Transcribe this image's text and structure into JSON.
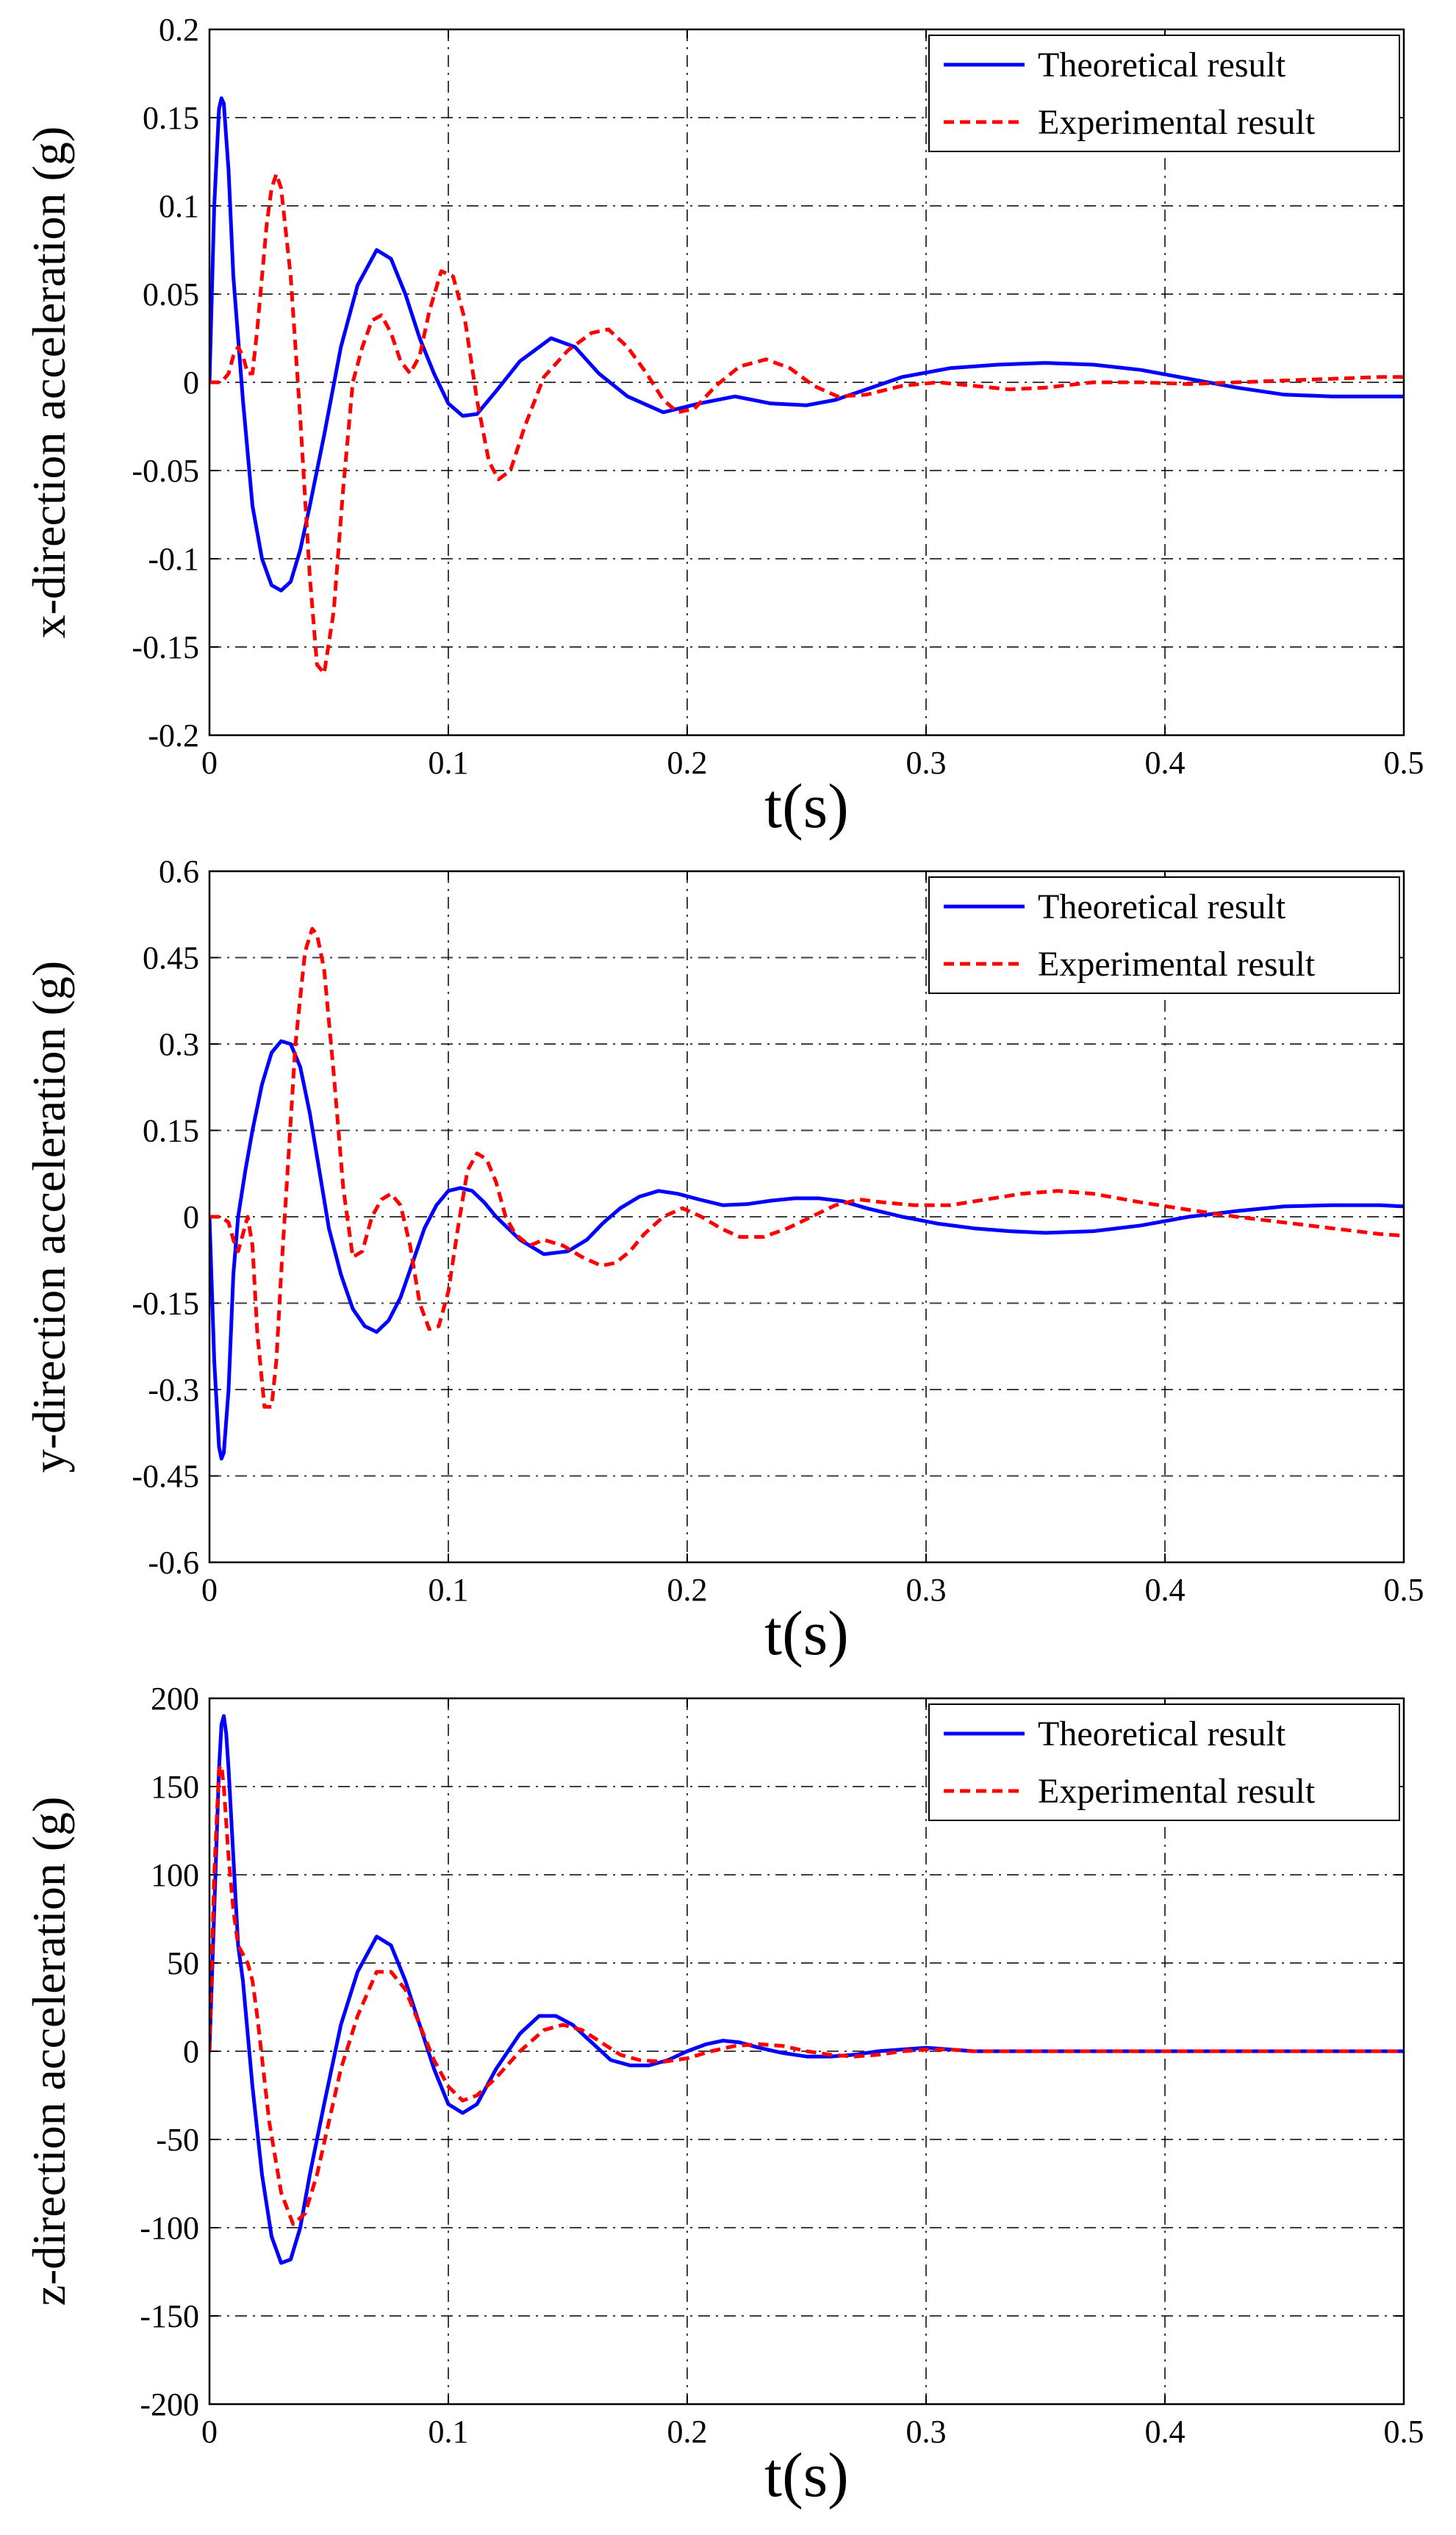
{
  "chart_data": [
    {
      "type": "line",
      "xlabel": "t(s)",
      "ylabel": "x-direction acceleration (g)",
      "xlim": [
        0,
        0.5
      ],
      "ylim": [
        -0.2,
        0.2
      ],
      "xticks": [
        0,
        0.1,
        0.2,
        0.3,
        0.4,
        0.5
      ],
      "xtick_labels": [
        "0",
        "0.1",
        "0.2",
        "0.3",
        "0.4",
        "0.5"
      ],
      "yticks": [
        -0.2,
        -0.15,
        -0.1,
        -0.05,
        0,
        0.05,
        0.1,
        0.15,
        0.2
      ],
      "ytick_labels": [
        "-0.2",
        "-0.15",
        "-0.1",
        "-0.05",
        "0",
        "0.05",
        "0.1",
        "0.15",
        "0.2"
      ],
      "grid": true,
      "legend_position": "top-right",
      "series": [
        {
          "name": "Theoretical result",
          "color": "#0000ff",
          "dash": "solid",
          "x": [
            0,
            0.002,
            0.004,
            0.005,
            0.006,
            0.008,
            0.01,
            0.014,
            0.018,
            0.022,
            0.026,
            0.03,
            0.034,
            0.038,
            0.042,
            0.048,
            0.055,
            0.062,
            0.07,
            0.076,
            0.082,
            0.088,
            0.094,
            0.1,
            0.106,
            0.112,
            0.12,
            0.13,
            0.143,
            0.153,
            0.163,
            0.175,
            0.19,
            0.205,
            0.22,
            0.235,
            0.25,
            0.262,
            0.275,
            0.29,
            0.31,
            0.33,
            0.35,
            0.37,
            0.39,
            0.41,
            0.43,
            0.45,
            0.47,
            0.49,
            0.5
          ],
          "y": [
            0,
            0.1,
            0.155,
            0.161,
            0.158,
            0.12,
            0.06,
            -0.01,
            -0.07,
            -0.1,
            -0.115,
            -0.118,
            -0.113,
            -0.095,
            -0.07,
            -0.03,
            0.02,
            0.055,
            0.075,
            0.07,
            0.05,
            0.025,
            0.005,
            -0.012,
            -0.019,
            -0.018,
            -0.005,
            0.012,
            0.025,
            0.02,
            0.005,
            -0.008,
            -0.017,
            -0.012,
            -0.008,
            -0.012,
            -0.013,
            -0.01,
            -0.004,
            0.003,
            0.008,
            0.01,
            0.011,
            0.01,
            0.007,
            0.002,
            -0.003,
            -0.007,
            -0.008,
            -0.008,
            -0.008
          ]
        },
        {
          "name": "Experimental result",
          "color": "#ff0000",
          "dash": "dashed",
          "x": [
            0,
            0.005,
            0.008,
            0.01,
            0.012,
            0.014,
            0.016,
            0.018,
            0.02,
            0.024,
            0.026,
            0.028,
            0.03,
            0.034,
            0.038,
            0.042,
            0.045,
            0.048,
            0.052,
            0.056,
            0.06,
            0.064,
            0.068,
            0.072,
            0.076,
            0.08,
            0.084,
            0.088,
            0.092,
            0.097,
            0.102,
            0.107,
            0.112,
            0.117,
            0.121,
            0.126,
            0.132,
            0.14,
            0.15,
            0.16,
            0.167,
            0.175,
            0.183,
            0.19,
            0.196,
            0.203,
            0.212,
            0.222,
            0.233,
            0.243,
            0.253,
            0.263,
            0.275,
            0.29,
            0.305,
            0.32,
            0.335,
            0.35,
            0.37,
            0.39,
            0.41,
            0.43,
            0.45,
            0.47,
            0.49,
            0.5
          ],
          "y": [
            0,
            0,
            0.005,
            0.015,
            0.02,
            0.015,
            0.005,
            0.005,
            0.03,
            0.09,
            0.11,
            0.118,
            0.11,
            0.06,
            -0.02,
            -0.11,
            -0.16,
            -0.165,
            -0.13,
            -0.06,
            0.0,
            0.02,
            0.035,
            0.038,
            0.028,
            0.012,
            0.005,
            0.015,
            0.04,
            0.063,
            0.06,
            0.035,
            -0.01,
            -0.045,
            -0.055,
            -0.05,
            -0.025,
            0.003,
            0.018,
            0.028,
            0.03,
            0.02,
            0.005,
            -0.01,
            -0.017,
            -0.015,
            -0.002,
            0.009,
            0.013,
            0.008,
            -0.002,
            -0.008,
            -0.007,
            -0.002,
            0.0,
            -0.002,
            -0.004,
            -0.003,
            0.0,
            0.0,
            -0.001,
            0.0,
            0.001,
            0.002,
            0.003,
            0.003
          ]
        }
      ]
    },
    {
      "type": "line",
      "xlabel": "t(s)",
      "ylabel": "y-direction acceleration (g)",
      "xlim": [
        0,
        0.5
      ],
      "ylim": [
        -0.6,
        0.6
      ],
      "xticks": [
        0,
        0.1,
        0.2,
        0.3,
        0.4,
        0.5
      ],
      "xtick_labels": [
        "0",
        "0.1",
        "0.2",
        "0.3",
        "0.4",
        "0.5"
      ],
      "yticks": [
        -0.6,
        -0.45,
        -0.3,
        -0.15,
        0,
        0.15,
        0.3,
        0.45,
        0.6
      ],
      "ytick_labels": [
        "-0.6",
        "-0.45",
        "-0.3",
        "-0.15",
        "0",
        "0.15",
        "0.3",
        "0.45",
        "0.6"
      ],
      "grid": true,
      "legend_position": "top-right",
      "series": [
        {
          "name": "Theoretical result",
          "color": "#0000ff",
          "dash": "solid",
          "x": [
            0,
            0.002,
            0.004,
            0.005,
            0.006,
            0.008,
            0.01,
            0.012,
            0.015,
            0.018,
            0.022,
            0.026,
            0.03,
            0.034,
            0.038,
            0.042,
            0.046,
            0.05,
            0.055,
            0.06,
            0.065,
            0.07,
            0.075,
            0.08,
            0.085,
            0.09,
            0.095,
            0.1,
            0.105,
            0.11,
            0.115,
            0.12,
            0.13,
            0.14,
            0.15,
            0.158,
            0.165,
            0.172,
            0.18,
            0.188,
            0.196,
            0.205,
            0.215,
            0.225,
            0.235,
            0.245,
            0.255,
            0.265,
            0.275,
            0.29,
            0.305,
            0.32,
            0.335,
            0.35,
            0.37,
            0.39,
            0.41,
            0.43,
            0.45,
            0.47,
            0.49,
            0.5
          ],
          "y": [
            0,
            -0.25,
            -0.4,
            -0.42,
            -0.41,
            -0.3,
            -0.1,
            0.0,
            0.08,
            0.15,
            0.23,
            0.285,
            0.305,
            0.3,
            0.26,
            0.18,
            0.08,
            -0.02,
            -0.1,
            -0.16,
            -0.19,
            -0.2,
            -0.18,
            -0.14,
            -0.08,
            -0.02,
            0.02,
            0.045,
            0.05,
            0.045,
            0.025,
            0.0,
            -0.04,
            -0.065,
            -0.06,
            -0.04,
            -0.01,
            0.015,
            0.035,
            0.045,
            0.04,
            0.03,
            0.02,
            0.022,
            0.028,
            0.032,
            0.032,
            0.027,
            0.015,
            0.0,
            -0.012,
            -0.02,
            -0.025,
            -0.028,
            -0.025,
            -0.015,
            0.0,
            0.01,
            0.018,
            0.02,
            0.02,
            0.018
          ]
        },
        {
          "name": "Experimental result",
          "color": "#ff0000",
          "dash": "dashed",
          "x": [
            0,
            0.005,
            0.008,
            0.01,
            0.012,
            0.014,
            0.016,
            0.018,
            0.02,
            0.023,
            0.026,
            0.028,
            0.03,
            0.033,
            0.036,
            0.04,
            0.043,
            0.045,
            0.048,
            0.052,
            0.056,
            0.06,
            0.064,
            0.068,
            0.072,
            0.076,
            0.08,
            0.084,
            0.088,
            0.092,
            0.096,
            0.1,
            0.104,
            0.108,
            0.112,
            0.116,
            0.12,
            0.124,
            0.128,
            0.134,
            0.14,
            0.148,
            0.156,
            0.164,
            0.17,
            0.176,
            0.182,
            0.19,
            0.198,
            0.206,
            0.214,
            0.222,
            0.232,
            0.242,
            0.252,
            0.262,
            0.272,
            0.282,
            0.295,
            0.31,
            0.325,
            0.34,
            0.355,
            0.37,
            0.39,
            0.41,
            0.43,
            0.45,
            0.47,
            0.49,
            0.5
          ],
          "y": [
            0,
            0,
            -0.01,
            -0.04,
            -0.06,
            -0.03,
            0.0,
            -0.05,
            -0.2,
            -0.33,
            -0.33,
            -0.25,
            -0.1,
            0.1,
            0.3,
            0.46,
            0.5,
            0.49,
            0.43,
            0.25,
            0.05,
            -0.07,
            -0.06,
            0.0,
            0.03,
            0.04,
            0.02,
            -0.05,
            -0.15,
            -0.195,
            -0.19,
            -0.13,
            -0.02,
            0.08,
            0.11,
            0.1,
            0.06,
            0.0,
            -0.03,
            -0.05,
            -0.04,
            -0.05,
            -0.07,
            -0.085,
            -0.08,
            -0.06,
            -0.03,
            0.0,
            0.015,
            0.0,
            -0.02,
            -0.035,
            -0.035,
            -0.02,
            0.0,
            0.02,
            0.03,
            0.025,
            0.02,
            0.02,
            0.03,
            0.04,
            0.045,
            0.04,
            0.025,
            0.012,
            0.0,
            -0.01,
            -0.02,
            -0.03,
            -0.033
          ]
        }
      ]
    },
    {
      "type": "line",
      "xlabel": "t(s)",
      "ylabel": "z-direction acceleration (g)",
      "xlim": [
        0,
        0.5
      ],
      "ylim": [
        -200,
        200
      ],
      "xticks": [
        0,
        0.1,
        0.2,
        0.3,
        0.4,
        0.5
      ],
      "xtick_labels": [
        "0",
        "0.1",
        "0.2",
        "0.3",
        "0.4",
        "0.5"
      ],
      "yticks": [
        -200,
        -150,
        -100,
        -50,
        0,
        50,
        100,
        150,
        200
      ],
      "ytick_labels": [
        "-200",
        "-150",
        "-100",
        "-50",
        "0",
        "50",
        "100",
        "150",
        "200"
      ],
      "grid": true,
      "legend_position": "top-right",
      "series": [
        {
          "name": "Theoretical result",
          "color": "#0000ff",
          "dash": "solid",
          "x": [
            0,
            0.002,
            0.004,
            0.005,
            0.006,
            0.007,
            0.008,
            0.01,
            0.012,
            0.014,
            0.018,
            0.022,
            0.026,
            0.03,
            0.034,
            0.038,
            0.042,
            0.048,
            0.055,
            0.062,
            0.07,
            0.076,
            0.082,
            0.088,
            0.094,
            0.1,
            0.106,
            0.112,
            0.12,
            0.13,
            0.138,
            0.145,
            0.152,
            0.16,
            0.168,
            0.176,
            0.184,
            0.192,
            0.2,
            0.208,
            0.215,
            0.222,
            0.23,
            0.24,
            0.25,
            0.26,
            0.27,
            0.28,
            0.29,
            0.3,
            0.31,
            0.32,
            0.34,
            0.36,
            0.38,
            0.4,
            0.42,
            0.44,
            0.46,
            0.48,
            0.5
          ],
          "y": [
            0,
            80,
            160,
            185,
            190,
            180,
            160,
            110,
            60,
            40,
            -20,
            -70,
            -105,
            -120,
            -118,
            -100,
            -70,
            -30,
            15,
            45,
            65,
            60,
            40,
            15,
            -10,
            -30,
            -35,
            -30,
            -10,
            10,
            20,
            20,
            15,
            5,
            -5,
            -8,
            -8,
            -5,
            0,
            4,
            6,
            5,
            2,
            -1,
            -3,
            -3,
            -2,
            0,
            1,
            2,
            1,
            0,
            0,
            0,
            0,
            0,
            0,
            0,
            0,
            0,
            0
          ]
        },
        {
          "name": "Experimental result",
          "color": "#ff0000",
          "dash": "dashed",
          "x": [
            0,
            0.002,
            0.004,
            0.005,
            0.006,
            0.008,
            0.01,
            0.012,
            0.014,
            0.016,
            0.018,
            0.02,
            0.025,
            0.03,
            0.035,
            0.04,
            0.045,
            0.05,
            0.055,
            0.062,
            0.07,
            0.076,
            0.082,
            0.088,
            0.094,
            0.1,
            0.106,
            0.112,
            0.12,
            0.13,
            0.14,
            0.148,
            0.156,
            0.164,
            0.172,
            0.18,
            0.19,
            0.2,
            0.21,
            0.22,
            0.23,
            0.24,
            0.25,
            0.26,
            0.27,
            0.28,
            0.29,
            0.3,
            0.31,
            0.32,
            0.34,
            0.36,
            0.38,
            0.4,
            0.42,
            0.44,
            0.46,
            0.48,
            0.5
          ],
          "y": [
            0,
            100,
            160,
            162,
            150,
            110,
            80,
            60,
            55,
            50,
            40,
            20,
            -40,
            -80,
            -98,
            -92,
            -70,
            -40,
            -10,
            20,
            45,
            45,
            35,
            15,
            -5,
            -20,
            -28,
            -25,
            -15,
            0,
            12,
            15,
            12,
            5,
            -2,
            -5,
            -6,
            -4,
            0,
            3,
            4,
            3,
            0,
            -2,
            -3,
            -2,
            0,
            1,
            1,
            0,
            0,
            0,
            0,
            0,
            0,
            0,
            0,
            0,
            0
          ]
        }
      ]
    }
  ]
}
